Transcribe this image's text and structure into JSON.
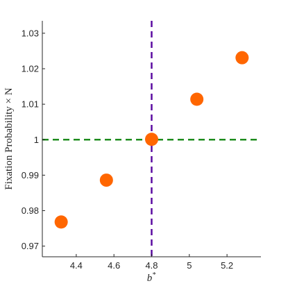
{
  "chart_data": {
    "type": "scatter",
    "title": "",
    "xlabel": "b*",
    "ylabel": "Fixation Probability × N",
    "xlim": [
      4.22,
      5.38
    ],
    "ylim": [
      0.967,
      1.0335
    ],
    "xticks": [
      4.4,
      4.6,
      4.8,
      5,
      5.2
    ],
    "xtick_labels": [
      "4.4",
      "4.6",
      "4.8",
      "5",
      "5.2"
    ],
    "yticks": [
      0.97,
      0.98,
      0.99,
      1,
      1.01,
      1.02,
      1.03
    ],
    "ytick_labels": [
      "0.97",
      "0.98",
      "0.99",
      "1",
      "1.01",
      "1.02",
      "1.03"
    ],
    "grid": false,
    "points": [
      {
        "x": 4.32,
        "y": 0.9768
      },
      {
        "x": 4.56,
        "y": 0.9886
      },
      {
        "x": 4.8,
        "y": 1.0001
      },
      {
        "x": 5.04,
        "y": 1.0114
      },
      {
        "x": 5.28,
        "y": 1.0231
      }
    ],
    "marker_color": "#ff6600",
    "reference_lines": [
      {
        "orientation": "vertical",
        "value": 4.8,
        "color": "#5a0aa0",
        "style": "dashed"
      },
      {
        "orientation": "horizontal",
        "value": 1,
        "color": "#1e8c1e",
        "style": "dashed"
      }
    ]
  }
}
